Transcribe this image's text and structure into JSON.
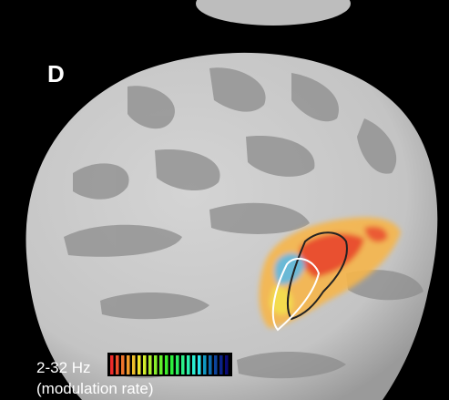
{
  "panel_label": "D",
  "colorbar": {
    "label": "2-32 Hz",
    "sublabel": "(modulation rate)"
  }
}
